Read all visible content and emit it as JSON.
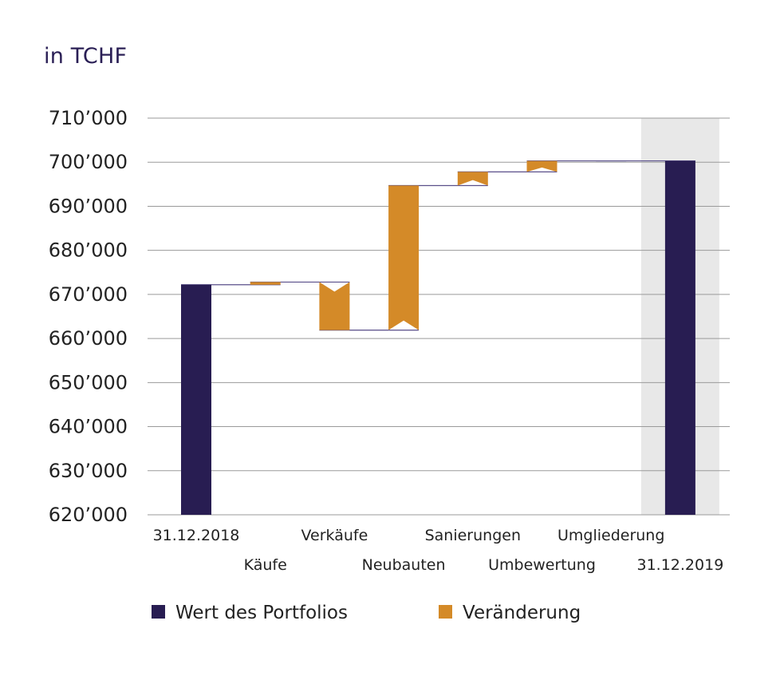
{
  "unit_label": "in TCHF",
  "colors": {
    "total": "#281d52",
    "change": "#d48a28",
    "grid": "#9a9a9a",
    "highlight": "#e8e8e8",
    "connector": "#5a4f8a",
    "tick_text": "#222222"
  },
  "chart_data": {
    "type": "waterfall",
    "title": "",
    "unit": "in TCHF",
    "ylim": [
      620000,
      710000
    ],
    "y_ticks": [
      {
        "value": 710000,
        "label": "710’000"
      },
      {
        "value": 700000,
        "label": "700’000"
      },
      {
        "value": 690000,
        "label": "690’000"
      },
      {
        "value": 680000,
        "label": "680’000"
      },
      {
        "value": 670000,
        "label": "670’000"
      },
      {
        "value": 660000,
        "label": "660’000"
      },
      {
        "value": 650000,
        "label": "650’000"
      },
      {
        "value": 640000,
        "label": "640’000"
      },
      {
        "value": 630000,
        "label": "630’000"
      },
      {
        "value": 620000,
        "label": "620’000"
      }
    ],
    "categories": [
      "31.12.2018",
      "Käufe",
      "Verkäufe",
      "Neubauten",
      "Sanierungen",
      "Umbewertung",
      "Umgliederung",
      "31.12.2019"
    ],
    "label_rows": [
      "top",
      "bottom",
      "top",
      "bottom",
      "top",
      "bottom",
      "top",
      "bottom"
    ],
    "bars": [
      {
        "category": "31.12.2018",
        "kind": "total",
        "value": 672200
      },
      {
        "category": "Käufe",
        "kind": "change",
        "from": 672200,
        "to": 672800
      },
      {
        "category": "Verkäufe",
        "kind": "change",
        "from": 672800,
        "to": 661900
      },
      {
        "category": "Neubauten",
        "kind": "change",
        "from": 661900,
        "to": 694700
      },
      {
        "category": "Sanierungen",
        "kind": "change",
        "from": 694700,
        "to": 697800
      },
      {
        "category": "Umbewertung",
        "kind": "change",
        "from": 697800,
        "to": 700300
      },
      {
        "category": "Umgliederung",
        "kind": "change",
        "from": 700300,
        "to": 700300
      },
      {
        "category": "31.12.2019",
        "kind": "total",
        "value": 700300
      }
    ],
    "highlight_category": "31.12.2019",
    "legend": [
      {
        "label": "Wert des Portfolios",
        "kind": "total"
      },
      {
        "label": "Veränderung",
        "kind": "change"
      }
    ],
    "legend_position": "bottom",
    "grid": true
  }
}
